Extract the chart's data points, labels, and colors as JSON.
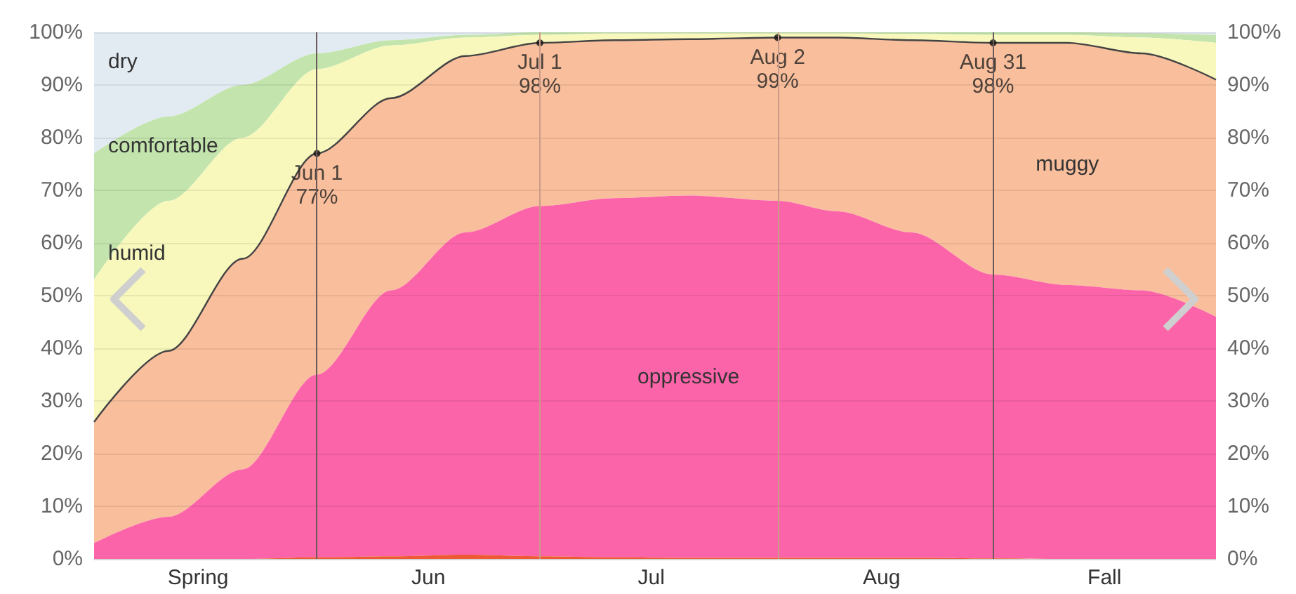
{
  "chart_data": {
    "type": "area",
    "stacked": true,
    "x": [
      "--05-02",
      "--05-12",
      "--05-22",
      "--06-01",
      "--06-11",
      "--06-21",
      "--07-01",
      "--07-11",
      "--07-21",
      "--08-02",
      "--08-10",
      "--08-20",
      "--08-31",
      "--09-10",
      "--09-20",
      "--09-30"
    ],
    "series": [
      {
        "color": "#ef5a36",
        "values": [
          0,
          0,
          0,
          0.3,
          0.5,
          0.8,
          0.5,
          0.3,
          0.2,
          0.2,
          0.2,
          0.2,
          0.1,
          0,
          0,
          0
        ]
      },
      {
        "name": "oppressive",
        "color": "#fc64a9",
        "values": [
          3,
          8,
          17,
          34.7,
          50.5,
          61.2,
          66.5,
          68.2,
          68.8,
          67.8,
          65.8,
          61.8,
          53.9,
          52,
          51,
          46
        ]
      },
      {
        "name": "muggy",
        "color": "#f9bf9c",
        "line_style": "solid",
        "values": [
          23,
          31.5,
          40,
          42,
          36.5,
          33.5,
          31,
          30,
          29.7,
          31,
          33,
          36.5,
          44,
          46,
          45,
          45
        ]
      },
      {
        "name": "humid",
        "color": "#f8f8bd",
        "values": [
          27,
          28.5,
          23,
          16,
          10,
          3.5,
          1.5,
          1.3,
          1.1,
          0.8,
          0.8,
          1.2,
          1.5,
          1.5,
          3,
          7
        ]
      },
      {
        "name": "comfortable",
        "color": "#c3e5ad",
        "values": [
          24,
          16,
          10,
          3,
          1,
          0.5,
          0.5,
          0.2,
          0.2,
          0.2,
          0.2,
          0.3,
          0.5,
          0.5,
          0.8,
          1.5
        ]
      },
      {
        "name": "dry",
        "color": "#e2ebf2",
        "values": [
          23,
          16,
          10,
          4,
          1.5,
          0.5,
          0,
          0,
          0,
          0,
          0,
          0,
          0,
          0,
          0.2,
          0.5
        ]
      }
    ],
    "xlim": [
      "--05-02",
      "--09-30"
    ],
    "xticks": [
      {
        "value": "--05-16",
        "label": "Spring"
      },
      {
        "value": "--06-16",
        "label": "Jun"
      },
      {
        "value": "--07-16",
        "label": "Jul"
      },
      {
        "value": "--08-16",
        "label": "Aug"
      },
      {
        "value": "--09-15",
        "label": "Fall"
      }
    ],
    "ylim": [
      0,
      100
    ],
    "yticks": [
      {
        "value": 0,
        "label": "0%"
      },
      {
        "value": 10,
        "label": "10%"
      },
      {
        "value": 20,
        "label": "20%"
      },
      {
        "value": 30,
        "label": "30%"
      },
      {
        "value": 40,
        "label": "40%"
      },
      {
        "value": 50,
        "label": "50%"
      },
      {
        "value": 60,
        "label": "60%"
      },
      {
        "value": 70,
        "label": "70%"
      },
      {
        "value": 80,
        "label": "80%"
      },
      {
        "value": 90,
        "label": "90%"
      },
      {
        "value": 100,
        "label": "100%"
      }
    ],
    "y2lim": [
      0,
      100
    ],
    "y2ticks": [
      {
        "value": 0,
        "label": "0%"
      },
      {
        "value": 10,
        "label": "10%"
      },
      {
        "value": 20,
        "label": "20%"
      },
      {
        "value": 30,
        "label": "30%"
      },
      {
        "value": 40,
        "label": "40%"
      },
      {
        "value": 50,
        "label": "50%"
      },
      {
        "value": 60,
        "label": "60%"
      },
      {
        "value": 70,
        "label": "70%"
      },
      {
        "value": 80,
        "label": "80%"
      },
      {
        "value": 90,
        "label": "90%"
      },
      {
        "value": 100,
        "label": "100%"
      }
    ],
    "ref_lines": [
      {
        "axis": "x",
        "value": "--06-01",
        "color": "#6b5a5a"
      },
      {
        "axis": "x",
        "value": "--07-01",
        "color": "#c99a88"
      },
      {
        "axis": "x",
        "value": "--08-02",
        "color": "#c99a88"
      },
      {
        "axis": "x",
        "value": "--08-31",
        "color": "#6b5a5a"
      }
    ],
    "annotations": [
      {
        "text": "Jun 1\n77%",
        "x": "--06-01",
        "y": 77
      },
      {
        "text": "Jul 1\n98%",
        "x": "--07-01",
        "y": 98
      },
      {
        "text": "Aug 2\n99%",
        "x": "--08-02",
        "y": 99
      },
      {
        "text": "Aug 31\n98%",
        "x": "--08-31",
        "y": 98
      }
    ],
    "grid": "y",
    "legend": false
  }
}
